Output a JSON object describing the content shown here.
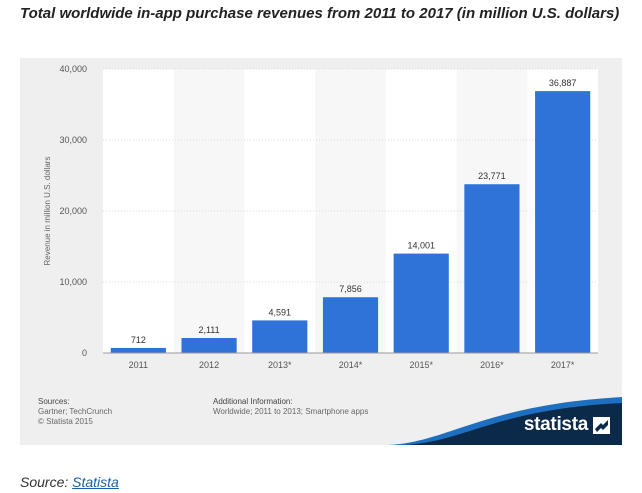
{
  "title": "Total worldwide in-app purchase revenues from 2011 to 2017 (in million U.S. dollars)",
  "chart_data": {
    "type": "bar",
    "categories": [
      "2011",
      "2012",
      "2013*",
      "2014*",
      "2015*",
      "2016*",
      "2017*"
    ],
    "values": [
      712,
      2111,
      4591,
      7856,
      14001,
      23771,
      36887
    ],
    "value_labels": [
      "712",
      "2,111",
      "4,591",
      "7,856",
      "14,001",
      "23,771",
      "36,887"
    ],
    "ylabel": "Revenue in million U.S. dollars",
    "xlabel": "",
    "ylim": [
      0,
      40000
    ],
    "yticks": [
      0,
      10000,
      20000,
      30000,
      40000
    ],
    "ytick_labels": [
      "0",
      "10,000",
      "20,000",
      "30,000",
      "40,000"
    ],
    "grid": true,
    "bar_color": "#2f73d9"
  },
  "footer": {
    "sources_label": "Sources:",
    "sources_lines": [
      "Gartner; TechCrunch",
      "© Statista 2015"
    ],
    "additional_label": "Additional Information:",
    "additional_lines": [
      "Worldwide; 2011 to 2013; Smartphone apps"
    ]
  },
  "brand": {
    "name": "statista",
    "color": "#0b2a4a",
    "accent": "#1f6fc0"
  },
  "source_line": {
    "prefix": "Source: ",
    "link_text": "Statista"
  }
}
